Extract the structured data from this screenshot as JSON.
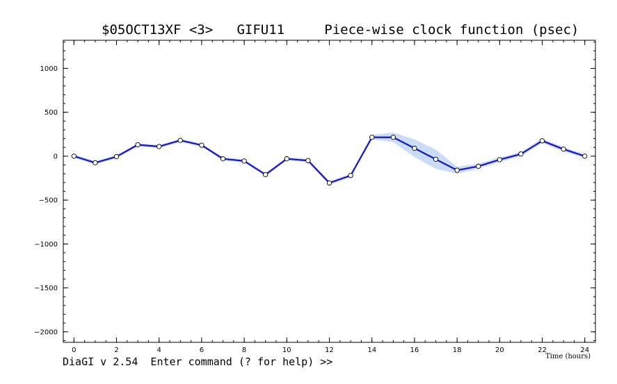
{
  "title": "$05OCT13XF <3>   GIFU11     Piece-wise clock function (psec)",
  "prompt": "DiaGI v 2.54  Enter command (? for help) >>",
  "chart_data": {
    "type": "line",
    "xlabel": "Time (hours)",
    "ylabel": "",
    "xlim": [
      -0.5,
      24.5
    ],
    "ylim": [
      -2120,
      1320
    ],
    "x_ticks": [
      0,
      2,
      4,
      6,
      8,
      10,
      12,
      14,
      16,
      18,
      20,
      22,
      24
    ],
    "y_ticks": [
      1000,
      500,
      0,
      -500,
      -1000,
      -1500,
      -2000
    ],
    "x_minor_step": 0.5,
    "y_minor_step": 100,
    "grid": false,
    "series": [
      {
        "x": [
          0,
          1,
          2,
          3,
          4,
          5,
          6,
          7,
          8,
          9,
          10,
          11,
          12,
          13,
          14,
          15,
          16,
          17,
          18,
          19,
          20,
          21,
          22,
          23,
          24
        ],
        "y": [
          0,
          -75,
          -5,
          130,
          110,
          180,
          125,
          -30,
          -55,
          -210,
          -30,
          -50,
          -305,
          -220,
          215,
          215,
          90,
          -35,
          -160,
          -115,
          -40,
          25,
          175,
          80,
          0
        ],
        "err": [
          20,
          18,
          18,
          18,
          18,
          18,
          18,
          18,
          18,
          18,
          18,
          18,
          20,
          20,
          25,
          55,
          100,
          110,
          40,
          30,
          25,
          25,
          25,
          25,
          20
        ],
        "line_color": "#1515c8",
        "band_color": "#c9dcf8",
        "marker_fill": "#ffffff"
      }
    ]
  }
}
